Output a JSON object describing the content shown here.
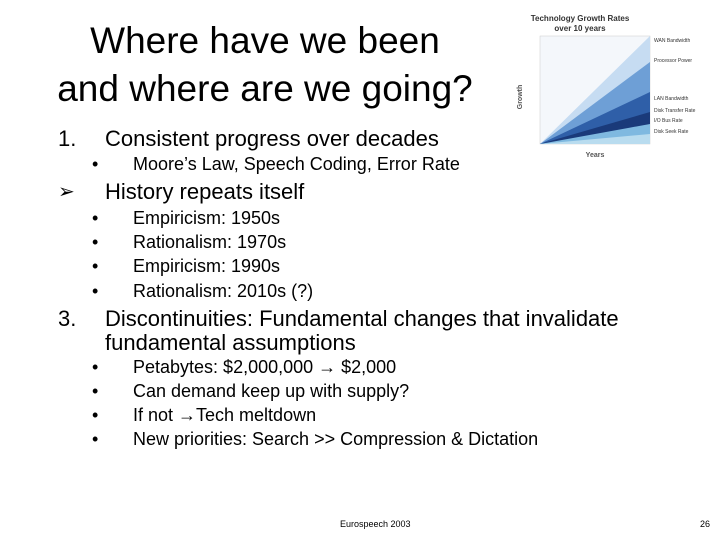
{
  "title": [
    "Where have we been",
    "and where are we going?"
  ],
  "items": [
    {
      "marker": "1.",
      "text": "Consistent progress over decades",
      "subitems": [
        {
          "marker": "•",
          "text": "Moore’s Law, Speech Coding, Error Rate"
        }
      ]
    },
    {
      "marker": "➢",
      "text": "History repeats itself",
      "subitems": [
        {
          "marker": "•",
          "text": "Empiricism: 1950s"
        },
        {
          "marker": "•",
          "text": "Rationalism: 1970s"
        },
        {
          "marker": "•",
          "text": "Empiricism: 1990s"
        },
        {
          "marker": "•",
          "text": "Rationalism: 2010s (?)"
        }
      ]
    },
    {
      "marker": "3.",
      "text": [
        "Discontinuities: Fundamental changes that invalidate",
        "fundamental assumptions"
      ],
      "subitems": [
        {
          "marker": "•",
          "text": "Petabytes: $2,000,000 → $2,000"
        },
        {
          "marker": "•",
          "text": "Can demand keep up with supply?"
        },
        {
          "marker": "•",
          "text": "If not →Tech meltdown"
        },
        {
          "marker": "•",
          "text": "New priorities: Search >> Compression & Dictation"
        }
      ]
    }
  ],
  "figure": {
    "title": [
      "Technology Growth Rates",
      "over 10 years"
    ],
    "y_label": "Growth",
    "x_label": "Years",
    "legend": [
      "WAN Bandwidth",
      "Processor Power",
      "LAN Bandwidth",
      "Disk Transfer Rate",
      "I/O Bus Rate",
      "Disk Seek Rate"
    ]
  },
  "footer": {
    "center": "Eurospeech 2003",
    "page": "26"
  }
}
